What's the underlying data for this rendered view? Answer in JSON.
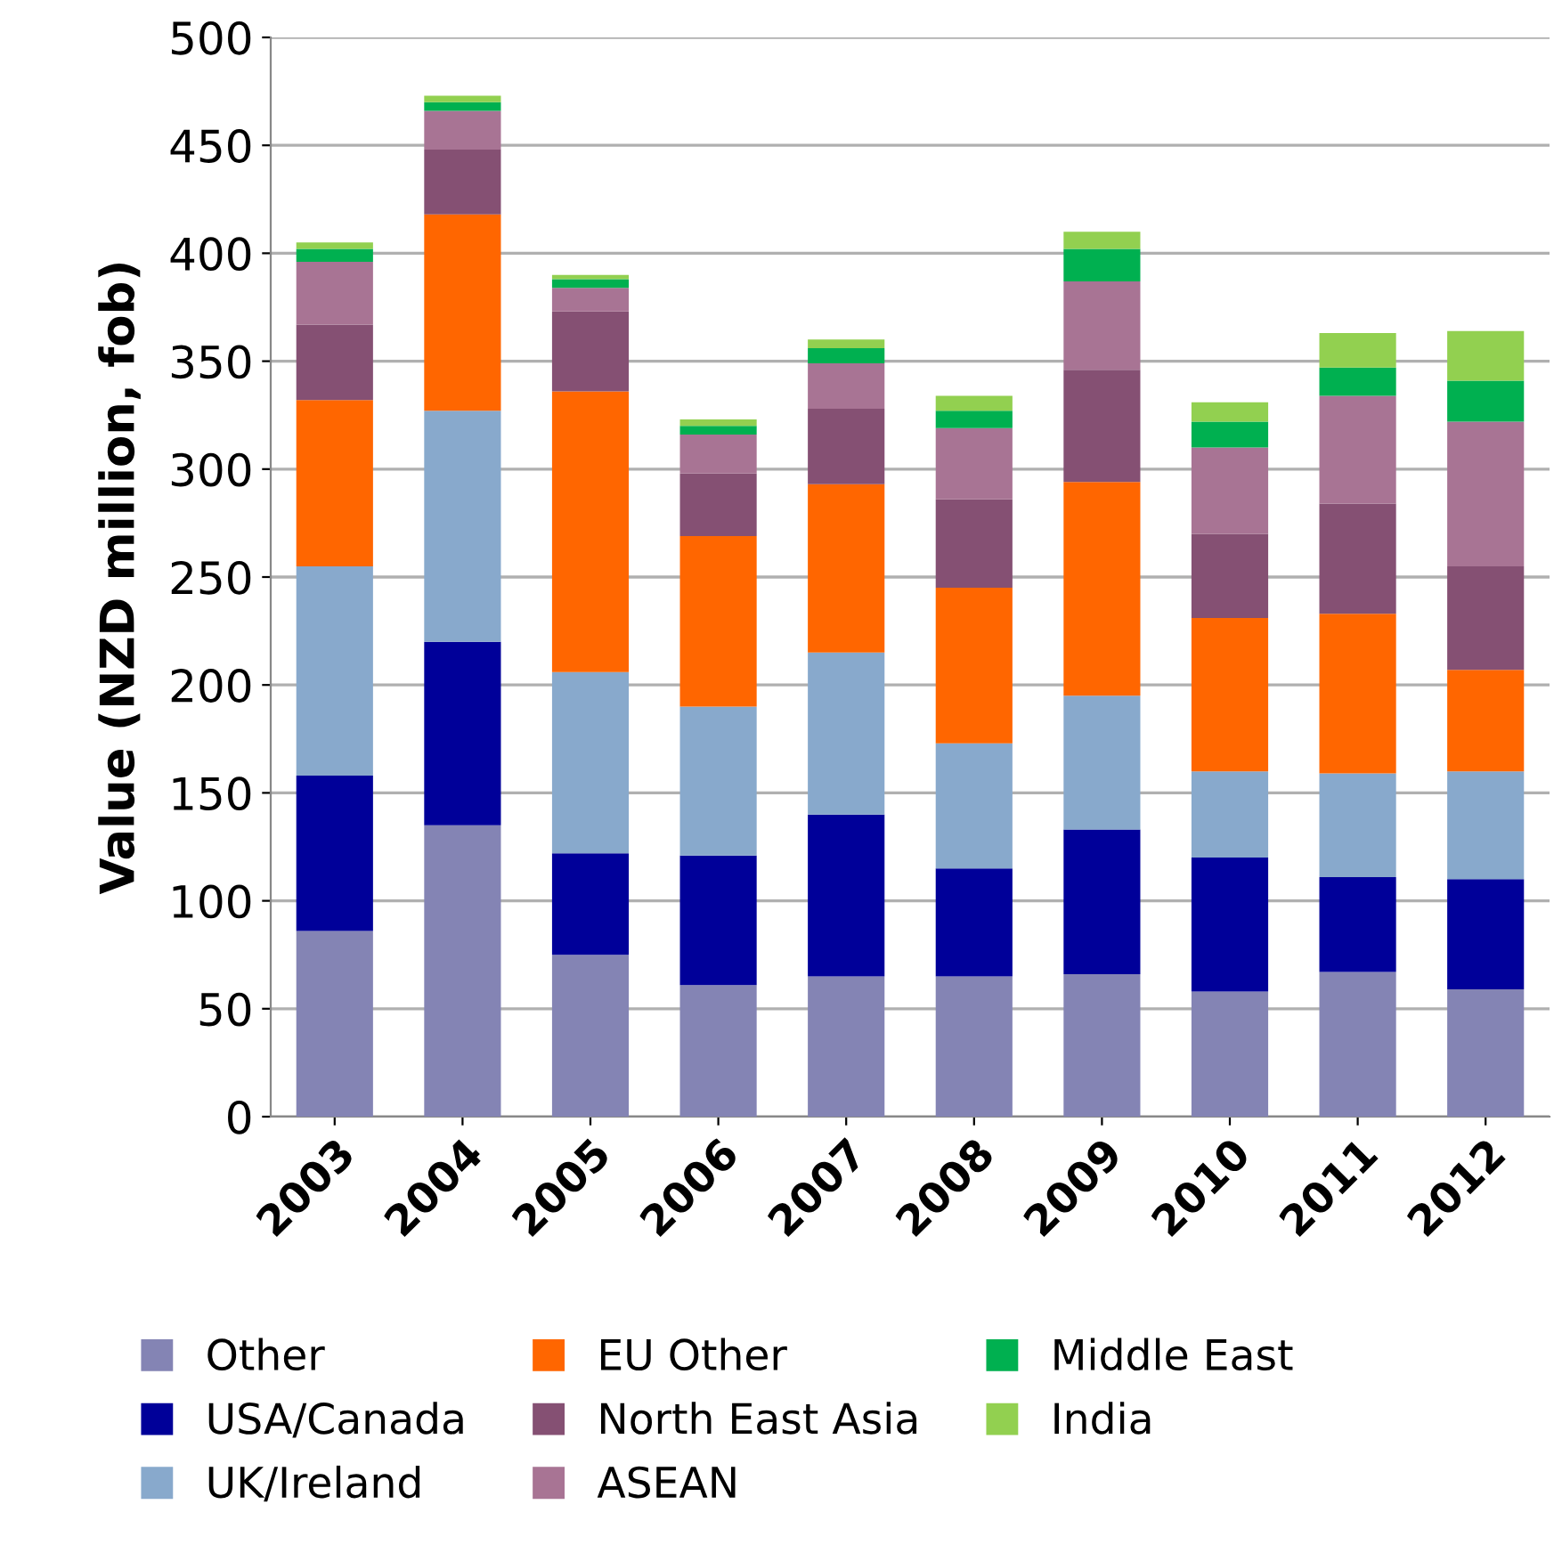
{
  "chart_data": {
    "type": "bar",
    "stacked": true,
    "ylabel": "Value (NZD million, fob)",
    "categories": [
      "2003",
      "2004",
      "2005",
      "2006",
      "2007",
      "2008",
      "2009",
      "2010",
      "2011",
      "2012"
    ],
    "series": [
      {
        "name": "Other",
        "color": "#8484b4",
        "values": [
          86,
          135,
          75,
          61,
          65,
          65,
          66,
          58,
          67,
          59
        ]
      },
      {
        "name": "USA/Canada",
        "color": "#000099",
        "values": [
          72,
          85,
          47,
          60,
          75,
          50,
          67,
          62,
          44,
          51
        ]
      },
      {
        "name": "UK/Ireland",
        "color": "#88a9cc",
        "values": [
          97,
          107,
          84,
          69,
          75,
          58,
          62,
          40,
          48,
          50
        ]
      },
      {
        "name": "EU Other",
        "color": "#ff6600",
        "values": [
          77,
          91,
          130,
          79,
          78,
          72,
          99,
          71,
          74,
          47
        ]
      },
      {
        "name": "North East Asia",
        "color": "#855073",
        "values": [
          35,
          30,
          37,
          29,
          35,
          41,
          52,
          39,
          51,
          48
        ]
      },
      {
        "name": "ASEAN",
        "color": "#a87494",
        "values": [
          29,
          18,
          11,
          18,
          21,
          33,
          41,
          40,
          50,
          67
        ]
      },
      {
        "name": "Middle East",
        "color": "#00b050",
        "values": [
          6,
          4,
          4,
          4,
          7,
          8,
          15,
          12,
          13,
          19
        ]
      },
      {
        "name": "India",
        "color": "#92d050",
        "values": [
          3,
          3,
          2,
          3,
          4,
          7,
          8,
          9,
          16,
          23
        ]
      }
    ],
    "ylim": [
      0,
      500
    ],
    "yticks": [
      0,
      50,
      100,
      150,
      200,
      250,
      300,
      350,
      400,
      450,
      500
    ],
    "grid": "y",
    "legend": "bottom"
  }
}
